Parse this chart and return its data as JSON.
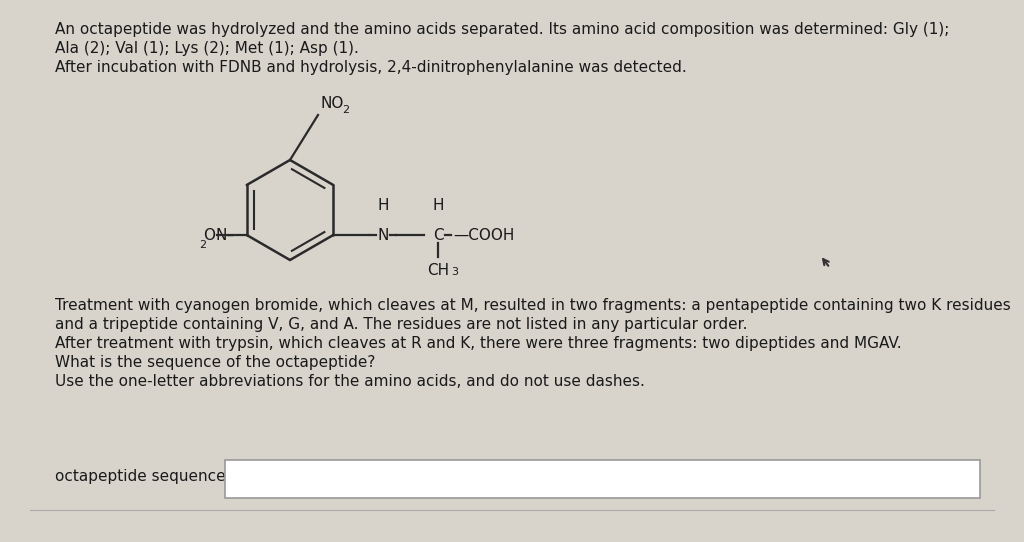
{
  "bg_color": "#d8d4cc",
  "panel_color": "#ede9e0",
  "text_color": "#1a1a1a",
  "title_lines": [
    "An octapeptide was hydrolyzed and the amino acids separated. Its amino acid composition was determined: Gly (1);",
    "Ala (2); Val (1); Lys (2); Met (1); Asp (1).",
    "After incubation with FDNB and hydrolysis, 2,4-dinitrophenylalanine was detected."
  ],
  "body_lines": [
    "Treatment with cyanogen bromide, which cleaves at M, resulted in two fragments: a pentapeptide containing two K residues",
    "and a tripeptide containing V, G, and A. The residues are not listed in any particular order.",
    "After treatment with trypsin, which cleaves at R and K, there were three fragments: two dipeptides and MGAV.",
    "What is the sequence of the octapeptide?",
    "Use the one-letter abbreviations for the amino acids, and do not use dashes."
  ],
  "answer_label": "octapeptide sequence:",
  "font_size": 11.0
}
